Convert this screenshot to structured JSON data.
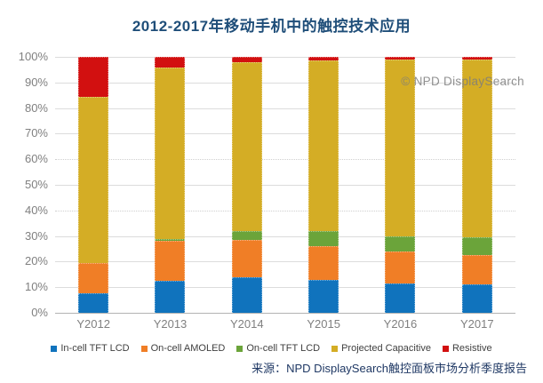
{
  "title": "2012-2017年移动手机中的触控技术应用",
  "watermark": "© NPD DisplaySearch",
  "source": "来源：NPD DisplaySearch触控面板市场分析季度报告",
  "colors": {
    "title_text": "#1f4e79",
    "axis_label": "#808080",
    "source_text": "#1f3864",
    "watermark_text": "#7d7d7d",
    "gridline": "#dcdcdc"
  },
  "chart_data": {
    "type": "bar",
    "stacked": true,
    "title": "2012-2017年移动手机中的触控技术应用",
    "categories": [
      "Y2012",
      "Y2013",
      "Y2014",
      "Y2015",
      "Y2016",
      "Y2017"
    ],
    "series": [
      {
        "name": "In-cell TFT LCD",
        "color": "#1073bd",
        "values": [
          7.5,
          12.5,
          14,
          13,
          11.5,
          11
        ]
      },
      {
        "name": "On-cell AMOLED",
        "color": "#f07e26",
        "values": [
          12,
          15.5,
          14.5,
          13,
          12.5,
          11.5
        ]
      },
      {
        "name": "On-cell TFT LCD",
        "color": "#6ba43a",
        "values": [
          0,
          1,
          3.5,
          6,
          6,
          7
        ]
      },
      {
        "name": "Projected Capacitive",
        "color": "#d4ad25",
        "values": [
          65,
          67,
          66,
          66.5,
          69,
          69.5
        ]
      },
      {
        "name": "Resistive",
        "color": "#d21010",
        "values": [
          15.5,
          4,
          2,
          1.5,
          1,
          1
        ]
      }
    ],
    "units": "percent",
    "xlabel": "",
    "ylabel": "",
    "ylim": [
      0,
      100
    ],
    "y_ticks": [
      0,
      10,
      20,
      30,
      40,
      50,
      60,
      70,
      80,
      90,
      100
    ],
    "y_tick_suffix": "%",
    "dotted_gridlines": [
      40,
      60
    ],
    "grid": true,
    "legend_position": "bottom"
  }
}
